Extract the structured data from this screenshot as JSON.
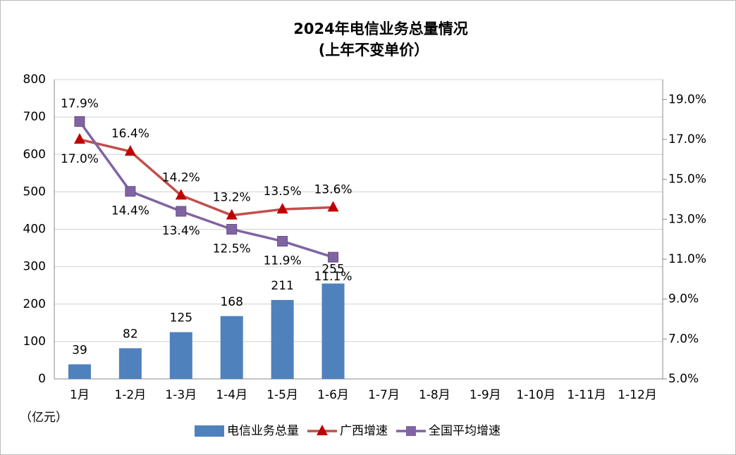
{
  "chart_data": {
    "type": "bar_line",
    "title": "2024年电信业务总量情况",
    "subtitle": "(上年不变单价）",
    "y_axis_label": "（亿元）",
    "categories": [
      "1月",
      "1-2月",
      "1-3月",
      "1-4月",
      "1-5月",
      "1-6月",
      "1-7月",
      "1-8月",
      "1-9月",
      "1-10月",
      "1-11月",
      "1-12月"
    ],
    "ylim": [
      0,
      800
    ],
    "yticks": [
      0,
      100,
      200,
      300,
      400,
      500,
      600,
      700,
      800
    ],
    "y2lim": [
      5,
      20
    ],
    "y2ticks": [
      {
        "value": 5,
        "label": "5.0%"
      },
      {
        "value": 7,
        "label": "7.0%"
      },
      {
        "value": 9,
        "label": "9.0%"
      },
      {
        "value": 11,
        "label": "11.0%"
      },
      {
        "value": 13,
        "label": "13.0%"
      },
      {
        "value": 15,
        "label": "15.0%"
      },
      {
        "value": 17,
        "label": "17.0%"
      },
      {
        "value": 19,
        "label": "19.0%"
      }
    ],
    "grid": true,
    "legend": "bottom",
    "series": [
      {
        "name": "电信业务总量",
        "type": "bar",
        "color": "#4f81bd",
        "values": [
          39,
          82,
          125,
          168,
          211,
          255,
          null,
          null,
          null,
          null,
          null,
          null
        ]
      },
      {
        "name": "广西增速",
        "type": "line",
        "marker": "triangle",
        "axis": "y2",
        "color": "#c0504d",
        "values": [
          17.0,
          16.4,
          14.2,
          13.2,
          13.5,
          13.6,
          null,
          null,
          null,
          null,
          null,
          null
        ],
        "value_labels": [
          "17.0%",
          "16.4%",
          "14.2%",
          "13.2%",
          "13.5%",
          "13.6%",
          null,
          null,
          null,
          null,
          null,
          null
        ]
      },
      {
        "name": "全国平均增速",
        "type": "line",
        "marker": "square",
        "axis": "y2",
        "color": "#8064a2",
        "values": [
          17.9,
          14.4,
          13.4,
          12.5,
          11.9,
          11.1,
          null,
          null,
          null,
          null,
          null,
          null
        ],
        "value_labels": [
          "17.9%",
          "14.4%",
          "13.4%",
          "12.5%",
          "11.9%",
          "11.1%",
          null,
          null,
          null,
          null,
          null,
          null
        ]
      }
    ]
  }
}
